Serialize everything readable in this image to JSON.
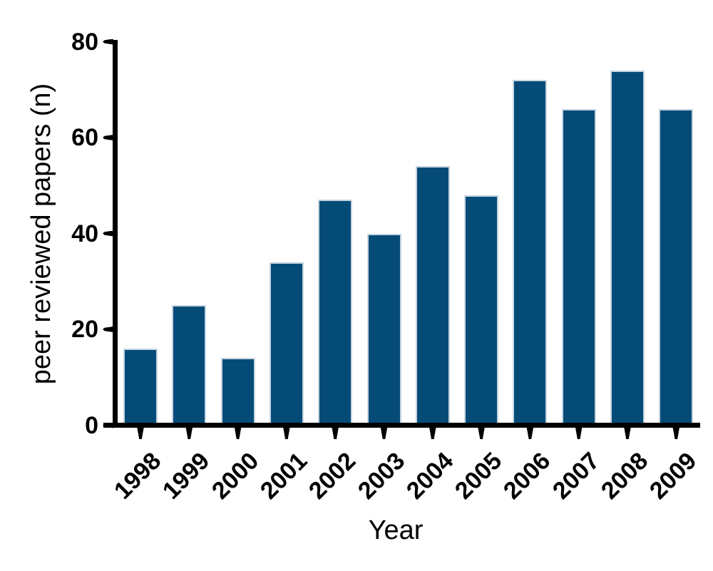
{
  "chart_data": {
    "type": "bar",
    "title": "",
    "xlabel": "Year",
    "ylabel": "peer reviewed papers (n)",
    "categories": [
      "1998",
      "1999",
      "2000",
      "2001",
      "2002",
      "2003",
      "2004",
      "2005",
      "2006",
      "2007",
      "2008",
      "2009"
    ],
    "values": [
      16,
      25,
      14,
      34,
      47,
      40,
      54,
      48,
      72,
      66,
      74,
      66
    ],
    "yticks": [
      0,
      20,
      40,
      60,
      80
    ],
    "ylim": [
      0,
      80
    ],
    "grid": false,
    "legend": "none",
    "colors": {
      "bar_fill": "#054b78",
      "bar_border": "#c5d5e0",
      "axis": "#000000",
      "text": "#000000"
    }
  }
}
